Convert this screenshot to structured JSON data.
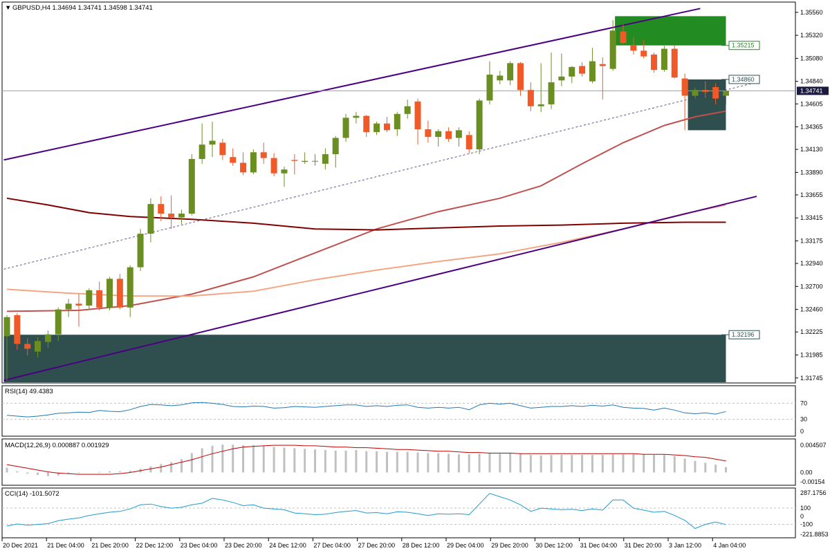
{
  "chart_data": {
    "type": "candlestick",
    "title": "GBPUSD,H4  1.34694 1.34741 1.34598 1.34741",
    "symbol": "GBPUSD",
    "timeframe": "H4",
    "ohlc_header": "1.34694 1.34741 1.34598 1.34741",
    "colors": {
      "bull": "#6B8E23",
      "bear": "#F05A28",
      "grid": "#C0C0C0",
      "axis": "#000000",
      "channel": "#4B0082",
      "zone": "#2F4F4F",
      "zone_top": "#228B22",
      "ma_fast": "#C0504D",
      "ma_mid": "#F4A582",
      "ma_slow": "#800000",
      "rsi": "#1F78B4",
      "macd_signal": "#C00000",
      "macd_hist": "#C0C0C0",
      "cci": "#1F9BD0"
    },
    "price_axis": {
      "ticks": [
        "1.35560",
        "1.35320",
        "1.35080",
        "1.34840",
        "1.34605",
        "1.34365",
        "1.34130",
        "1.33890",
        "1.33655",
        "1.33415",
        "1.33175",
        "1.32940",
        "1.32700",
        "1.32460",
        "1.32225",
        "1.31985",
        "1.31745"
      ],
      "ylim": [
        1.317,
        1.3566
      ],
      "current_price": "1.34741",
      "levels": [
        {
          "label": "1.35215",
          "value": 1.35215,
          "color": "#228B22"
        },
        {
          "label": "1.34860",
          "value": 1.3486,
          "color": "#2F4F4F"
        },
        {
          "label": "1.32196",
          "value": 1.32196,
          "color": "#2F4F4F"
        }
      ]
    },
    "time_axis": {
      "labels": [
        "20 Dec 2021",
        "21 Dec 04:00",
        "21 Dec 20:00",
        "22 Dec 12:00",
        "23 Dec 04:00",
        "23 Dec 20:00",
        "24 Dec 12:00",
        "27 Dec 04:00",
        "27 Dec 20:00",
        "28 Dec 12:00",
        "29 Dec 04:00",
        "29 Dec 20:00",
        "30 Dec 12:00",
        "31 Dec 04:00",
        "31 Dec 20:00",
        "3 Jan 12:00",
        "4 Jan 04:00"
      ]
    },
    "candles": [
      {
        "o": 1.3218,
        "h": 1.324,
        "l": 1.3172,
        "c": 1.3238
      },
      {
        "o": 1.324,
        "h": 1.3242,
        "l": 1.3204,
        "c": 1.321
      },
      {
        "o": 1.321,
        "h": 1.3216,
        "l": 1.3198,
        "c": 1.3205
      },
      {
        "o": 1.3202,
        "h": 1.3217,
        "l": 1.3196,
        "c": 1.3213
      },
      {
        "o": 1.3212,
        "h": 1.3224,
        "l": 1.3206,
        "c": 1.322
      },
      {
        "o": 1.322,
        "h": 1.3248,
        "l": 1.3213,
        "c": 1.3246
      },
      {
        "o": 1.3246,
        "h": 1.3257,
        "l": 1.3238,
        "c": 1.3252
      },
      {
        "o": 1.3252,
        "h": 1.3262,
        "l": 1.3228,
        "c": 1.325
      },
      {
        "o": 1.325,
        "h": 1.3268,
        "l": 1.3246,
        "c": 1.3266
      },
      {
        "o": 1.3266,
        "h": 1.3275,
        "l": 1.3245,
        "c": 1.3248
      },
      {
        "o": 1.3248,
        "h": 1.328,
        "l": 1.3245,
        "c": 1.3278
      },
      {
        "o": 1.3278,
        "h": 1.3283,
        "l": 1.3246,
        "c": 1.3248
      },
      {
        "o": 1.3248,
        "h": 1.3292,
        "l": 1.3238,
        "c": 1.329
      },
      {
        "o": 1.329,
        "h": 1.333,
        "l": 1.3286,
        "c": 1.3325
      },
      {
        "o": 1.3325,
        "h": 1.3362,
        "l": 1.3316,
        "c": 1.3356
      },
      {
        "o": 1.3356,
        "h": 1.3364,
        "l": 1.3338,
        "c": 1.3346
      },
      {
        "o": 1.3346,
        "h": 1.3365,
        "l": 1.333,
        "c": 1.3342
      },
      {
        "o": 1.3342,
        "h": 1.335,
        "l": 1.3335,
        "c": 1.3346
      },
      {
        "o": 1.3346,
        "h": 1.3408,
        "l": 1.3344,
        "c": 1.3403
      },
      {
        "o": 1.3403,
        "h": 1.344,
        "l": 1.3398,
        "c": 1.3418
      },
      {
        "o": 1.3418,
        "h": 1.3442,
        "l": 1.3405,
        "c": 1.3422
      },
      {
        "o": 1.342,
        "h": 1.3424,
        "l": 1.3402,
        "c": 1.3407
      },
      {
        "o": 1.3405,
        "h": 1.3414,
        "l": 1.3396,
        "c": 1.3399
      },
      {
        "o": 1.3399,
        "h": 1.341,
        "l": 1.3386,
        "c": 1.3389
      },
      {
        "o": 1.3389,
        "h": 1.3413,
        "l": 1.3387,
        "c": 1.341
      },
      {
        "o": 1.341,
        "h": 1.342,
        "l": 1.3398,
        "c": 1.3404
      },
      {
        "o": 1.3404,
        "h": 1.3409,
        "l": 1.3385,
        "c": 1.3388
      },
      {
        "o": 1.3388,
        "h": 1.3395,
        "l": 1.3374,
        "c": 1.3392
      },
      {
        "o": 1.3402,
        "h": 1.3408,
        "l": 1.3387,
        "c": 1.3401
      },
      {
        "o": 1.34,
        "h": 1.341,
        "l": 1.3398,
        "c": 1.3401
      },
      {
        "o": 1.3401,
        "h": 1.3408,
        "l": 1.3396,
        "c": 1.3401
      },
      {
        "o": 1.3398,
        "h": 1.3414,
        "l": 1.3392,
        "c": 1.3408
      },
      {
        "o": 1.3408,
        "h": 1.3427,
        "l": 1.3394,
        "c": 1.3425
      },
      {
        "o": 1.3425,
        "h": 1.345,
        "l": 1.3421,
        "c": 1.3446
      },
      {
        "o": 1.3446,
        "h": 1.3452,
        "l": 1.344,
        "c": 1.3448
      },
      {
        "o": 1.3448,
        "h": 1.3449,
        "l": 1.3426,
        "c": 1.3431
      },
      {
        "o": 1.3431,
        "h": 1.3442,
        "l": 1.3428,
        "c": 1.344
      },
      {
        "o": 1.344,
        "h": 1.3447,
        "l": 1.3431,
        "c": 1.3433
      },
      {
        "o": 1.3434,
        "h": 1.3452,
        "l": 1.3427,
        "c": 1.345
      },
      {
        "o": 1.345,
        "h": 1.3465,
        "l": 1.3445,
        "c": 1.3458
      },
      {
        "o": 1.3463,
        "h": 1.3466,
        "l": 1.3418,
        "c": 1.3434
      },
      {
        "o": 1.3434,
        "h": 1.3443,
        "l": 1.342,
        "c": 1.3426
      },
      {
        "o": 1.3426,
        "h": 1.3434,
        "l": 1.3416,
        "c": 1.3432
      },
      {
        "o": 1.3432,
        "h": 1.3436,
        "l": 1.3421,
        "c": 1.3424
      },
      {
        "o": 1.3425,
        "h": 1.3436,
        "l": 1.3416,
        "c": 1.3433
      },
      {
        "o": 1.3428,
        "h": 1.3432,
        "l": 1.3409,
        "c": 1.3413
      },
      {
        "o": 1.3413,
        "h": 1.3466,
        "l": 1.3408,
        "c": 1.3464
      },
      {
        "o": 1.3464,
        "h": 1.3505,
        "l": 1.346,
        "c": 1.3491
      },
      {
        "o": 1.3485,
        "h": 1.3495,
        "l": 1.3481,
        "c": 1.349
      },
      {
        "o": 1.3485,
        "h": 1.3505,
        "l": 1.348,
        "c": 1.3503
      },
      {
        "o": 1.3503,
        "h": 1.3504,
        "l": 1.3469,
        "c": 1.3475
      },
      {
        "o": 1.3475,
        "h": 1.3483,
        "l": 1.3453,
        "c": 1.3458
      },
      {
        "o": 1.3458,
        "h": 1.3503,
        "l": 1.3452,
        "c": 1.346
      },
      {
        "o": 1.346,
        "h": 1.3514,
        "l": 1.3455,
        "c": 1.3483
      },
      {
        "o": 1.3485,
        "h": 1.3513,
        "l": 1.3479,
        "c": 1.3489
      },
      {
        "o": 1.3489,
        "h": 1.35,
        "l": 1.3482,
        "c": 1.3499
      },
      {
        "o": 1.35,
        "h": 1.3504,
        "l": 1.3489,
        "c": 1.3492
      },
      {
        "o": 1.3484,
        "h": 1.3519,
        "l": 1.3482,
        "c": 1.3505
      },
      {
        "o": 1.3502,
        "h": 1.3509,
        "l": 1.3465,
        "c": 1.35
      },
      {
        "o": 1.3497,
        "h": 1.3548,
        "l": 1.3495,
        "c": 1.3537
      },
      {
        "o": 1.3536,
        "h": 1.3543,
        "l": 1.3523,
        "c": 1.3524
      },
      {
        "o": 1.3522,
        "h": 1.353,
        "l": 1.3512,
        "c": 1.3516
      },
      {
        "o": 1.3516,
        "h": 1.3527,
        "l": 1.3508,
        "c": 1.351
      },
      {
        "o": 1.3512,
        "h": 1.3514,
        "l": 1.3493,
        "c": 1.3496
      },
      {
        "o": 1.3496,
        "h": 1.3521,
        "l": 1.3494,
        "c": 1.3518
      },
      {
        "o": 1.3518,
        "h": 1.3522,
        "l": 1.3487,
        "c": 1.3488
      },
      {
        "o": 1.3487,
        "h": 1.3492,
        "l": 1.3433,
        "c": 1.3469
      },
      {
        "o": 1.3469,
        "h": 1.3477,
        "l": 1.3466,
        "c": 1.3475
      },
      {
        "o": 1.3475,
        "h": 1.3484,
        "l": 1.3467,
        "c": 1.3473
      },
      {
        "o": 1.3478,
        "h": 1.3482,
        "l": 1.346,
        "c": 1.3466
      },
      {
        "o": 1.3469,
        "h": 1.3474,
        "l": 1.346,
        "c": 1.3474
      }
    ],
    "moving_averages": [
      {
        "color_key": "ma_fast",
        "points": [
          [
            0,
            1.3244
          ],
          [
            7,
            1.3245
          ],
          [
            12,
            1.325
          ],
          [
            18,
            1.3262
          ],
          [
            24,
            1.328
          ],
          [
            30,
            1.3305
          ],
          [
            36,
            1.333
          ],
          [
            42,
            1.3348
          ],
          [
            48,
            1.3362
          ],
          [
            52,
            1.3375
          ],
          [
            56,
            1.3398
          ],
          [
            60,
            1.342
          ],
          [
            64,
            1.3438
          ],
          [
            67,
            1.3447
          ],
          [
            70,
            1.3453
          ]
        ]
      },
      {
        "color_key": "ma_mid",
        "points": [
          [
            0,
            1.3267
          ],
          [
            6,
            1.3263
          ],
          [
            12,
            1.326
          ],
          [
            18,
            1.326
          ],
          [
            24,
            1.3265
          ],
          [
            30,
            1.3277
          ],
          [
            36,
            1.3287
          ],
          [
            42,
            1.3296
          ],
          [
            48,
            1.3304
          ],
          [
            54,
            1.3316
          ],
          [
            60,
            1.333
          ],
          [
            66,
            1.3346
          ],
          [
            70,
            1.3355
          ]
        ]
      },
      {
        "color_key": "ma_slow",
        "points": [
          [
            0,
            1.3362
          ],
          [
            4,
            1.3355
          ],
          [
            8,
            1.3347
          ],
          [
            12,
            1.3343
          ],
          [
            18,
            1.334
          ],
          [
            24,
            1.3336
          ],
          [
            30,
            1.333
          ],
          [
            36,
            1.3329
          ],
          [
            42,
            1.3331
          ],
          [
            48,
            1.3333
          ],
          [
            54,
            1.3334
          ],
          [
            60,
            1.3336
          ],
          [
            66,
            1.3337
          ],
          [
            70,
            1.3337
          ]
        ]
      }
    ],
    "channel_lines": [
      {
        "from": [
          -0.3,
          1.3402
        ],
        "to": [
          67.5,
          1.356
        ],
        "style": "solid"
      },
      {
        "from": [
          -0.3,
          1.3172
        ],
        "to": [
          73,
          1.3364
        ],
        "style": "solid"
      },
      {
        "from": [
          -0.3,
          1.3288
        ],
        "to": [
          73,
          1.3483
        ],
        "style": "dashed"
      }
    ],
    "zones": [
      {
        "x0": -0.3,
        "x1": 70,
        "top": 1.32196,
        "bottom": 1.317,
        "color_key": "zone"
      },
      {
        "x0": 59.2,
        "x1": 70,
        "top": 1.3552,
        "bottom": 1.35215,
        "color_key": "zone_top"
      },
      {
        "x0": 66.3,
        "x1": 70,
        "top": 1.3486,
        "bottom": 1.3433,
        "color_key": "zone"
      }
    ],
    "rsi": {
      "label": "RSI(14) 49.4383",
      "ticks": [
        "70",
        "30",
        "0"
      ],
      "levels": [
        70,
        30
      ],
      "values": [
        40,
        38,
        36,
        38,
        41,
        45,
        46,
        48,
        47,
        52,
        50,
        49,
        54,
        62,
        67,
        66,
        64,
        66,
        71,
        72,
        70,
        67,
        62,
        61,
        63,
        62,
        58,
        59,
        62,
        61,
        60,
        62,
        64,
        66,
        66,
        62,
        64,
        62,
        65,
        66,
        60,
        58,
        60,
        58,
        60,
        54,
        66,
        70,
        68,
        70,
        64,
        58,
        60,
        62,
        62,
        64,
        62,
        65,
        63,
        66,
        60,
        58,
        57,
        53,
        58,
        53,
        46,
        44,
        46,
        43,
        49.4
      ]
    },
    "macd": {
      "label": "MACD(12,26,9) 0.000887 0.001929",
      "ticks": [
        "0.004507",
        "0.00",
        "-0.00154"
      ],
      "ylim": [
        -0.00154,
        0.004507
      ],
      "hist": [
        0.0008,
        0.0002,
        -0.0002,
        -0.0004,
        -0.0006,
        -0.0005,
        -0.0002,
        -0.0001,
        0.0,
        0.0001,
        0.0002,
        0.0002,
        0.0003,
        0.0006,
        0.001,
        0.0014,
        0.0017,
        0.0022,
        0.0032,
        0.004,
        0.0044,
        0.0046,
        0.0046,
        0.0045,
        0.0045,
        0.0044,
        0.0042,
        0.0041,
        0.004,
        0.0039,
        0.0038,
        0.0037,
        0.0036,
        0.0036,
        0.0037,
        0.0035,
        0.0035,
        0.0034,
        0.0034,
        0.0034,
        0.0033,
        0.0032,
        0.0032,
        0.0031,
        0.003,
        0.003,
        0.0031,
        0.0032,
        0.0031,
        0.0032,
        0.0031,
        0.0029,
        0.0028,
        0.0029,
        0.0029,
        0.0029,
        0.0029,
        0.0029,
        0.0029,
        0.003,
        0.003,
        0.003,
        0.003,
        0.0029,
        0.0029,
        0.0027,
        0.0023,
        0.0019,
        0.0016,
        0.0013,
        0.0009
      ],
      "signal": [
        0.0013,
        0.001,
        0.0007,
        0.0004,
        0.0001,
        -0.0001,
        -0.0002,
        -0.0003,
        -0.0003,
        -0.0003,
        -0.0003,
        -0.0002,
        0.0,
        0.0003,
        0.0006,
        0.0009,
        0.0013,
        0.0017,
        0.0021,
        0.0026,
        0.0031,
        0.0035,
        0.0039,
        0.0042,
        0.0043,
        0.0044,
        0.0045,
        0.0045,
        0.0045,
        0.0044,
        0.0044,
        0.0043,
        0.0042,
        0.0042,
        0.0041,
        0.0041,
        0.004,
        0.0039,
        0.0038,
        0.0038,
        0.0037,
        0.0036,
        0.0035,
        0.0035,
        0.0034,
        0.0033,
        0.0033,
        0.0032,
        0.0032,
        0.0032,
        0.0031,
        0.0031,
        0.0031,
        0.0031,
        0.0031,
        0.0031,
        0.0031,
        0.0031,
        0.0031,
        0.0031,
        0.0031,
        0.0031,
        0.003,
        0.003,
        0.003,
        0.0029,
        0.0028,
        0.0026,
        0.0025,
        0.0022,
        0.0019
      ]
    },
    "cci": {
      "label": "CCI(14) -101.5072",
      "ticks": [
        "287.1756",
        "100",
        "0",
        "-100",
        "-221.8853"
      ],
      "ylim": [
        -221.8853,
        287.1756
      ],
      "levels": [
        100,
        -100
      ],
      "values": [
        -120,
        -95,
        -110,
        -100,
        -90,
        -55,
        -35,
        -20,
        10,
        30,
        50,
        60,
        90,
        140,
        150,
        120,
        100,
        110,
        140,
        160,
        220,
        200,
        170,
        130,
        140,
        100,
        90,
        80,
        40,
        30,
        20,
        25,
        45,
        60,
        70,
        40,
        45,
        30,
        55,
        50,
        30,
        10,
        30,
        25,
        30,
        20,
        150,
        280,
        240,
        200,
        140,
        60,
        100,
        90,
        80,
        85,
        70,
        90,
        75,
        200,
        200,
        100,
        75,
        50,
        60,
        10,
        -50,
        -150,
        -100,
        -70,
        -101.5
      ]
    }
  }
}
